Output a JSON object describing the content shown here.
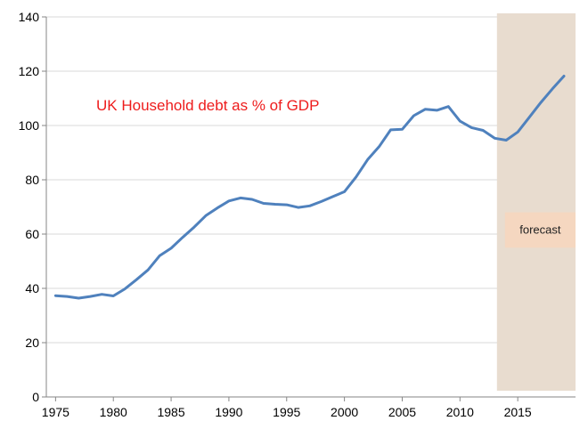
{
  "chart_data": {
    "type": "line",
    "title": "UK Household debt  as % of GDP",
    "xlabel": "",
    "ylabel": "",
    "xlim": [
      1974.2,
      2020
    ],
    "ylim": [
      0,
      140
    ],
    "x_ticks": [
      1975,
      1980,
      1985,
      1990,
      1995,
      2000,
      2005,
      2010,
      2015
    ],
    "y_ticks": [
      0,
      20,
      40,
      60,
      80,
      100,
      120,
      140
    ],
    "grid": "horizontal",
    "line_color": "#4f81bd",
    "title_color": "#ee1c1c",
    "series": [
      {
        "x": [
          1975,
          1976,
          1977,
          1978,
          1979,
          1980,
          1981,
          1982,
          1983,
          1984,
          1985,
          1986,
          1987,
          1988,
          1989,
          1990,
          1991,
          1992,
          1993,
          1994,
          1995,
          1996,
          1997,
          1998,
          1999,
          2000,
          2001,
          2002,
          2003,
          2004,
          2005,
          2006,
          2007,
          2008,
          2009,
          2010,
          2011,
          2012,
          2013,
          2014,
          2015,
          2016,
          2017,
          2018,
          2019
        ],
        "values": [
          37.3,
          37.0,
          36.4,
          37.0,
          37.8,
          37.2,
          39.8,
          43.2,
          46.8,
          52.0,
          54.8,
          58.8,
          62.6,
          66.8,
          69.6,
          72.2,
          73.3,
          72.8,
          71.3,
          71.0,
          70.8,
          69.8,
          70.4,
          72.0,
          73.8,
          75.6,
          81.0,
          87.4,
          92.2,
          98.4,
          98.6,
          103.6,
          106.0,
          105.6,
          107.0,
          101.6,
          99.2,
          98.2,
          95.3,
          94.6,
          97.6,
          103.0,
          108.5,
          113.5,
          118.2
        ]
      }
    ],
    "forecast_region": {
      "x_start": 2013.2,
      "x_end": 2020,
      "label": "forecast",
      "label_y": [
        55,
        68
      ],
      "shade_color": "#e8dccf",
      "box_color": "#f5d7c0"
    }
  }
}
